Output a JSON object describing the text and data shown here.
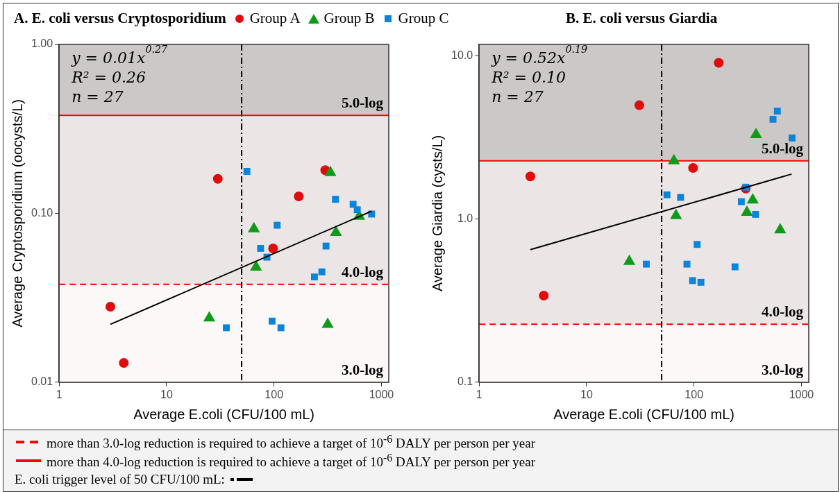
{
  "chart_data": [
    {
      "type": "scatter",
      "title": "A. E. coli versus Cryptosporidium",
      "xlabel": "Average E.coli (CFU/100 mL)",
      "ylabel": "Average Cryptosporidium (oocysts/L)",
      "xlim": [
        1,
        1170
      ],
      "ylim": [
        0.01,
        1
      ],
      "xticks": [
        1,
        10,
        100,
        1000
      ],
      "yticks": [
        0.01,
        {
          "value": 0.1,
          "label": "0.10"
        },
        {
          "value": 1,
          "label": "1.00"
        }
      ],
      "log": "xy",
      "grid": false,
      "legend": "top",
      "series": [
        {
          "name": "Group A",
          "color": "#e00b0b",
          "marker": "circle",
          "x": [
            30,
            300,
            170,
            98,
            3,
            4
          ],
          "values": [
            0.16,
            0.18,
            0.126,
            0.062,
            0.028,
            0.013
          ]
        },
        {
          "name": "Group B",
          "color": "#0f9b1a",
          "marker": "triangle",
          "x": [
            335,
            65,
            68,
            377,
            620,
            25,
            316
          ],
          "values": [
            0.174,
            0.081,
            0.048,
            0.077,
            0.096,
            0.024,
            0.022
          ]
        },
        {
          "name": "Group C",
          "color": "#0b84db",
          "marker": "square",
          "x": [
            56,
            373,
            545,
            596,
            810,
            107,
            75,
            86,
            305,
            279,
            238,
            36,
            96,
            116
          ],
          "values": [
            0.177,
            0.121,
            0.113,
            0.105,
            0.099,
            0.085,
            0.062,
            0.055,
            0.064,
            0.045,
            0.042,
            0.021,
            0.023,
            0.021
          ]
        },
        {
          "type": "line",
          "color": "#000000",
          "marker": "none",
          "x": [
            3,
            810
          ],
          "values": [
            0.022,
            0.103
          ]
        }
      ],
      "bands": [
        {
          "axis": "y",
          "from": 0.38,
          "to": 1,
          "label": "5.0-log",
          "color": "#cdc8c8"
        },
        {
          "axis": "y",
          "from": 0.038,
          "to": 0.38,
          "label": "4.0-log",
          "color": "#ece5e5"
        },
        {
          "axis": "y",
          "from": 0.01,
          "to": 0.038,
          "label": "3.0-log",
          "color": "#fcf8f8"
        }
      ],
      "ref_lines": [
        {
          "axis": "y",
          "value": 0.038,
          "color": "#ff0000",
          "line_style": "dashed"
        },
        {
          "axis": "y",
          "value": 0.38,
          "color": "#ff0000",
          "line_style": "solid"
        },
        {
          "axis": "x",
          "value": 50,
          "color": "#000000",
          "line_style": "dashdot"
        }
      ],
      "annotations": [
        "y = 0.01x$^{0.27}$",
        "R² = 0.26",
        "n = 27",
        "more than 3.0-log reduction is required to achieve a target of 10$^{-6}$ DALY per person per year",
        "more than 4.0-log reduction is required to achieve a target of 10$^{-6}$ DALY per person per year",
        "E. coli trigger level of 50 CFU/100 mL:"
      ]
    },
    {
      "type": "scatter",
      "title": "B.  E. coli versus Giardia",
      "xlabel": "Average E.coli (CFU/100 mL)",
      "ylabel": "Average Giardia (cysts/L)",
      "xlim": [
        1,
        1170
      ],
      "ylim": [
        0.1,
        11.8
      ],
      "xticks": [
        1,
        10,
        100,
        1000
      ],
      "yticks": [
        0.1,
        {
          "value": 1,
          "label": "1.0"
        },
        {
          "value": 10,
          "label": "10.0"
        }
      ],
      "log": "xy",
      "grid": false,
      "series": [
        {
          "color": "#e00b0b",
          "marker": "circle",
          "x": [
            170,
            31,
            98,
            3,
            4,
            303
          ],
          "values": [
            9.1,
            5.0,
            2.06,
            1.83,
            0.34,
            1.54
          ]
        },
        {
          "color": "#0f9b1a",
          "marker": "triangle",
          "x": [
            378,
            65,
            68,
            352,
            311,
            634,
            25
          ],
          "values": [
            3.3,
            2.28,
            1.05,
            1.31,
            1.1,
            0.86,
            0.55
          ]
        },
        {
          "color": "#0b84db",
          "marker": "square",
          "x": [
            597,
            544,
            818,
            304,
            56,
            75,
            276,
            374,
            107,
            36,
            86,
            241,
            97,
            116
          ],
          "values": [
            4.6,
            4.1,
            3.15,
            1.57,
            1.41,
            1.36,
            1.28,
            1.07,
            0.7,
            0.53,
            0.53,
            0.51,
            0.42,
            0.41
          ]
        },
        {
          "type": "line",
          "color": "#000000",
          "marker": "none",
          "x": [
            3,
            809
          ],
          "values": [
            0.65,
            1.89
          ]
        }
      ],
      "bands": [
        {
          "axis": "y",
          "from": 2.28,
          "to": 11.8,
          "label": "5.0-log",
          "color": "#cdc8c8"
        },
        {
          "axis": "y",
          "from": 0.227,
          "to": 2.28,
          "label": "4.0-log",
          "color": "#ece5e5"
        },
        {
          "axis": "y",
          "from": 0.1,
          "to": 0.227,
          "label": "3.0-log",
          "color": "#fcf8f8"
        }
      ],
      "ref_lines": [
        {
          "axis": "y",
          "value": 0.227,
          "color": "#ff0000",
          "line_style": "dashed"
        },
        {
          "axis": "y",
          "value": 2.28,
          "color": "#ff0000",
          "line_style": "solid"
        },
        {
          "axis": "x",
          "value": 50,
          "color": "#000000",
          "line_style": "dashdot"
        }
      ],
      "annotations": [
        "y = 0.52x$^{0.19}$",
        "R² = 0.10",
        "n = 27"
      ]
    }
  ]
}
